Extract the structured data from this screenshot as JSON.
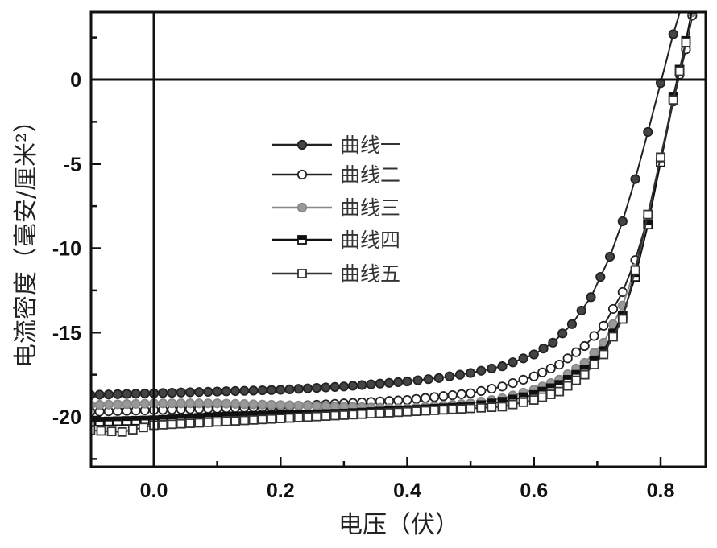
{
  "chart_data": {
    "type": "line",
    "title": "",
    "xlabel": "电压（伏）",
    "ylabel": "电流密度（毫安/厘米²）",
    "xlim": [
      -0.1,
      0.87
    ],
    "ylim": [
      -23,
      4
    ],
    "xticks": [
      0.0,
      0.2,
      0.4,
      0.6,
      0.8
    ],
    "xtick_labels": [
      "0.0",
      "0.2",
      "0.4",
      "0.6",
      "0.8"
    ],
    "xminor": [
      0.1,
      0.3,
      0.5,
      0.7
    ],
    "yticks": [
      0,
      -5,
      -10,
      -15,
      -20
    ],
    "ytick_labels": [
      "0",
      "-5",
      "-10",
      "-15",
      "-20"
    ],
    "yminor": [
      2.5,
      -2.5,
      -7.5,
      -12.5,
      -17.5,
      -22.5
    ],
    "reference_lines": {
      "x": 0,
      "y": 0
    },
    "grid": false,
    "legend_position": "upper-center-left",
    "series": [
      {
        "name": "曲线一",
        "marker": "filled-circle",
        "color": "#222222",
        "marker_fill": "#444444",
        "x": [
          -0.1,
          0.0,
          0.1,
          0.2,
          0.3,
          0.4,
          0.45,
          0.5,
          0.55,
          0.6,
          0.63,
          0.66,
          0.69,
          0.72,
          0.74,
          0.76,
          0.78,
          0.8,
          0.82,
          0.84,
          0.85
        ],
        "y": [
          -18.7,
          -18.6,
          -18.5,
          -18.4,
          -18.2,
          -17.9,
          -17.7,
          -17.4,
          -17.0,
          -16.3,
          -15.6,
          -14.5,
          -12.9,
          -10.5,
          -8.4,
          -5.9,
          -3.1,
          -0.2,
          2.7,
          5.2,
          6.5
        ]
      },
      {
        "name": "曲线二",
        "marker": "open-circle",
        "color": "#222222",
        "marker_fill": "#ffffff",
        "x": [
          -0.1,
          0.0,
          0.1,
          0.2,
          0.3,
          0.4,
          0.5,
          0.55,
          0.6,
          0.64,
          0.68,
          0.71,
          0.74,
          0.76,
          0.78,
          0.8,
          0.82,
          0.83,
          0.84,
          0.85
        ],
        "y": [
          -19.7,
          -19.6,
          -19.5,
          -19.4,
          -19.2,
          -19.0,
          -18.6,
          -18.2,
          -17.6,
          -16.9,
          -15.8,
          -14.6,
          -12.6,
          -10.7,
          -8.2,
          -4.9,
          -1.3,
          0.3,
          1.8,
          3.8
        ]
      },
      {
        "name": "曲线三",
        "marker": "gray-circle",
        "color": "#888888",
        "marker_fill": "#999999",
        "x": [
          -0.1,
          0.0,
          0.1,
          0.2,
          0.3,
          0.4,
          0.5,
          0.55,
          0.6,
          0.64,
          0.68,
          0.71,
          0.74,
          0.76,
          0.78,
          0.8,
          0.82,
          0.83,
          0.84,
          0.85
        ],
        "y": [
          -19.3,
          -19.2,
          -19.2,
          -19.3,
          -19.4,
          -19.5,
          -19.2,
          -18.9,
          -18.4,
          -17.8,
          -16.8,
          -15.6,
          -13.4,
          -11.2,
          -8.4,
          -4.8,
          -1.0,
          0.6,
          2.2,
          4.0
        ]
      },
      {
        "name": "曲线四",
        "marker": "filled-square",
        "color": "#111111",
        "marker_fill": "#111111",
        "x": [
          -0.1,
          0.0,
          0.1,
          0.2,
          0.3,
          0.4,
          0.5,
          0.55,
          0.6,
          0.64,
          0.68,
          0.71,
          0.74,
          0.76,
          0.78,
          0.8,
          0.82,
          0.83,
          0.84,
          0.85
        ],
        "y": [
          -20.3,
          -20.2,
          -20.0,
          -19.9,
          -19.8,
          -19.6,
          -19.4,
          -19.1,
          -18.7,
          -18.1,
          -17.2,
          -16.1,
          -14.0,
          -11.7,
          -8.6,
          -4.9,
          -1.0,
          0.6,
          2.3,
          4.2
        ]
      },
      {
        "name": "曲线五",
        "marker": "open-square",
        "color": "#333333",
        "marker_fill": "#ffffff",
        "x": [
          -0.1,
          -0.05,
          0.0,
          0.1,
          0.2,
          0.3,
          0.4,
          0.5,
          0.55,
          0.6,
          0.64,
          0.68,
          0.71,
          0.74,
          0.76,
          0.78,
          0.8,
          0.82,
          0.83,
          0.84
        ],
        "y": [
          -20.8,
          -20.9,
          -20.5,
          -20.3,
          -20.1,
          -19.9,
          -19.7,
          -19.5,
          -19.4,
          -19.0,
          -18.5,
          -17.5,
          -16.3,
          -14.2,
          -11.3,
          -8.0,
          -4.6,
          -1.2,
          0.5,
          2.2
        ]
      }
    ]
  },
  "legend": {
    "items": [
      "曲线一",
      "曲线二",
      "曲线三",
      "曲线四",
      "曲线五"
    ]
  },
  "axes": {
    "xlabel": "电压（伏）",
    "ylabel": "电流密度（毫安/厘米²）"
  }
}
